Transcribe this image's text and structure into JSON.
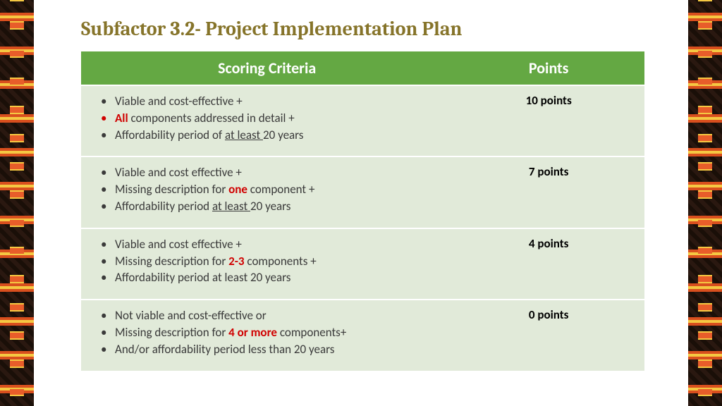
{
  "title": "Subfactor 3.2- Project Implementation Plan",
  "title_color": "#86742a",
  "table": {
    "header_bg": "#64a843",
    "row_bg": "#e1ead9",
    "columns": [
      "Scoring Criteria",
      "Points"
    ],
    "rows": [
      {
        "points": "10 points",
        "items": [
          {
            "text": "Viable and cost-effective +"
          },
          {
            "pre": "",
            "em": "All",
            "post": " components addressed in detail +",
            "red_bullet": true
          },
          {
            "pre": "Affordability period of ",
            "u": "at least ",
            "post": "20 years"
          }
        ]
      },
      {
        "points": "7 points",
        "items": [
          {
            "text": "Viable and cost effective +"
          },
          {
            "pre": "Missing description for ",
            "em": "one",
            "post": " component +"
          },
          {
            "pre": "Affordability period ",
            "u": "at least ",
            "post": "20 years"
          }
        ]
      },
      {
        "points": "4 points",
        "items": [
          {
            "text": "Viable and cost effective +"
          },
          {
            "pre": "Missing description for ",
            "em": "2-3",
            "post": " components +"
          },
          {
            "text": "Affordability period at least 20 years"
          }
        ]
      },
      {
        "points": "0 points",
        "items": [
          {
            "text": "Not viable and cost-effective or"
          },
          {
            "pre": "Missing description for ",
            "em": "4 or more",
            "post": " components+"
          },
          {
            "text": "And/or affordability period less than 20 years"
          }
        ]
      }
    ]
  }
}
